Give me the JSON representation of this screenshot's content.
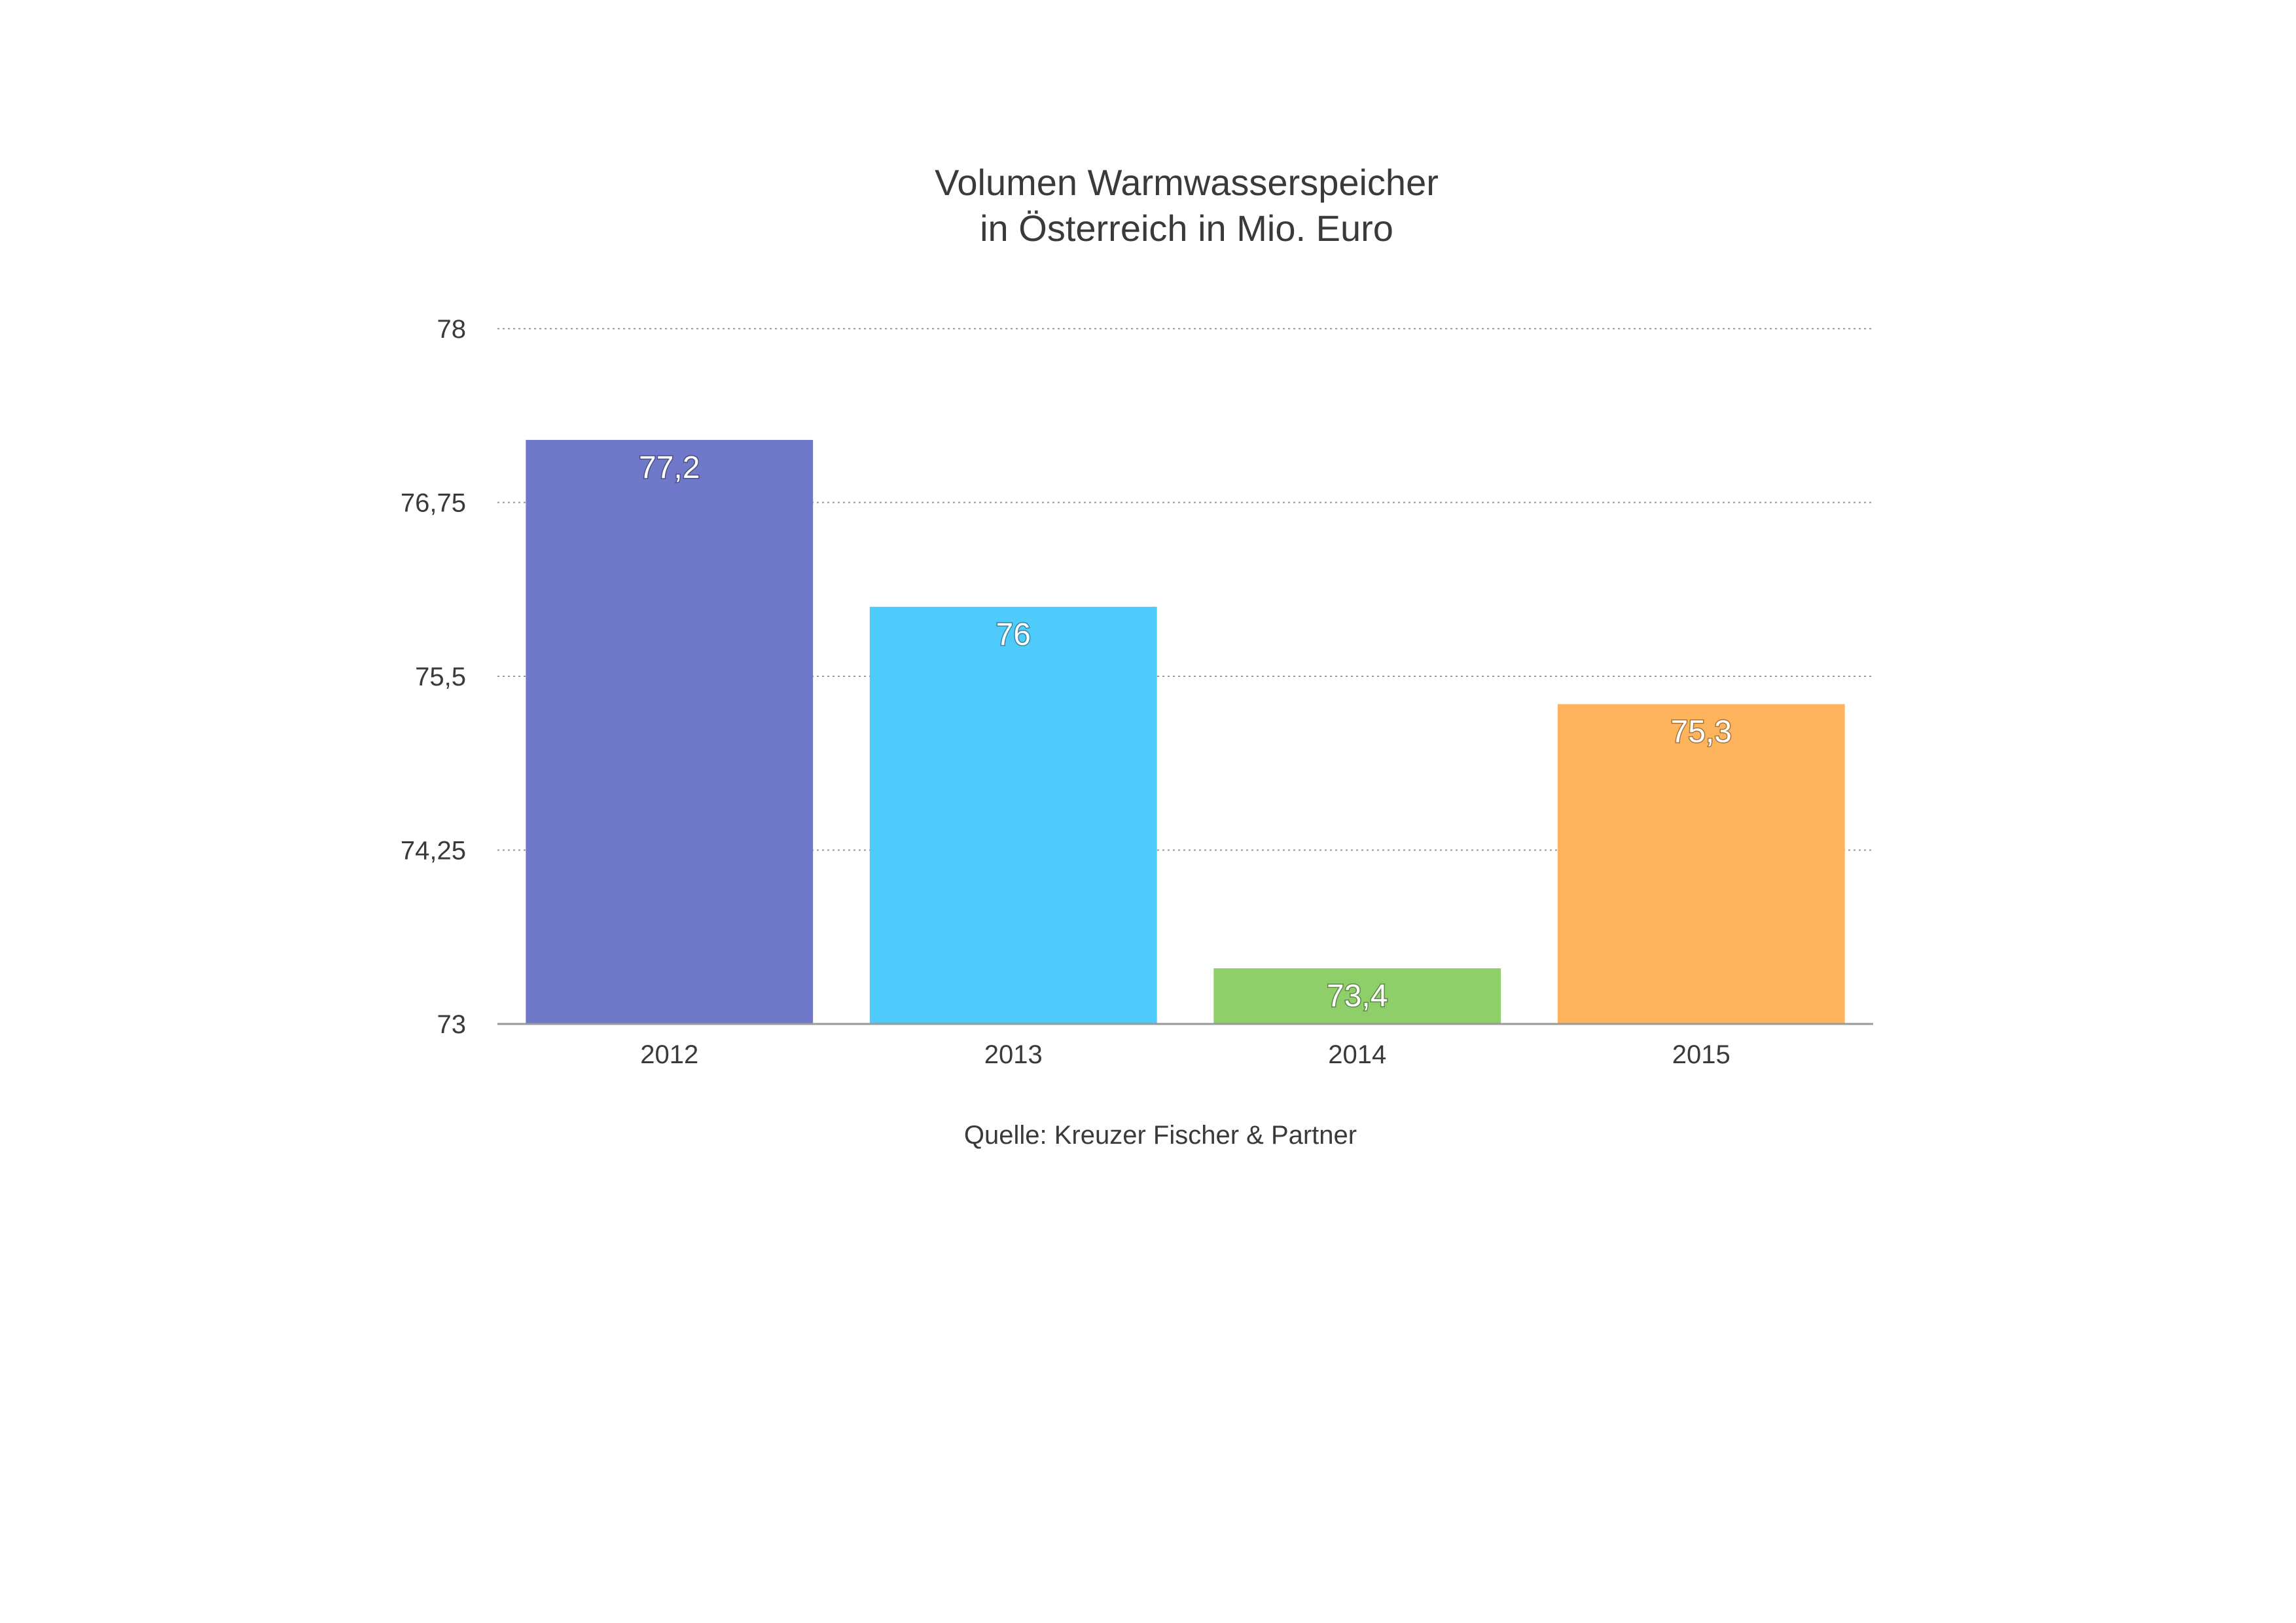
{
  "chart_data": {
    "type": "bar",
    "title_lines": [
      "Volumen Warmwasserspeicher",
      "in Österreich in Mio. Euro"
    ],
    "categories": [
      "2012",
      "2013",
      "2014",
      "2015"
    ],
    "values": [
      77.2,
      76,
      73.4,
      75.3
    ],
    "value_labels": [
      "77,2",
      "76",
      "73,4",
      "75,3"
    ],
    "colors": [
      "#7079c9",
      "#4fcbfb",
      "#8ecf69",
      "#fdb45c"
    ],
    "ylim": [
      73,
      78
    ],
    "yticks": [
      73,
      74.25,
      75.5,
      76.75,
      78
    ],
    "ytick_labels": [
      "73",
      "74,25",
      "75,5",
      "76,75",
      "78"
    ],
    "grid": true,
    "source": "Quelle: Kreuzer Fischer & Partner"
  }
}
